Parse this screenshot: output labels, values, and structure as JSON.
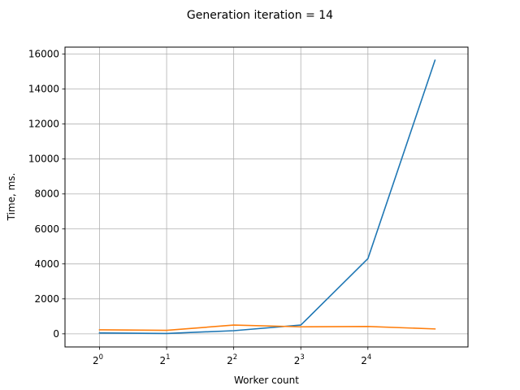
{
  "chart_data": {
    "type": "line",
    "title": "Generation iteration = 14",
    "xlabel": "Worker count",
    "ylabel": "Time, ms.",
    "x_scale": "log2",
    "xlim": [
      0.7,
      45
    ],
    "ylim": [
      -750,
      16400
    ],
    "grid": true,
    "x_ticks": [
      {
        "value": 1,
        "base": "2",
        "exp": "0"
      },
      {
        "value": 2,
        "base": "2",
        "exp": "1"
      },
      {
        "value": 4,
        "base": "2",
        "exp": "2"
      },
      {
        "value": 8,
        "base": "2",
        "exp": "3"
      },
      {
        "value": 16,
        "base": "2",
        "exp": "4"
      }
    ],
    "y_ticks": [
      0,
      2000,
      4000,
      6000,
      8000,
      10000,
      12000,
      14000,
      16000
    ],
    "series": [
      {
        "color": "#1f77b4",
        "x": [
          1,
          2,
          4,
          8,
          16,
          32
        ],
        "y": [
          50,
          20,
          180,
          500,
          4300,
          15650
        ]
      },
      {
        "color": "#ff7f0e",
        "x": [
          1,
          2,
          4,
          8,
          16,
          32
        ],
        "y": [
          230,
          200,
          500,
          400,
          420,
          280
        ]
      }
    ]
  }
}
